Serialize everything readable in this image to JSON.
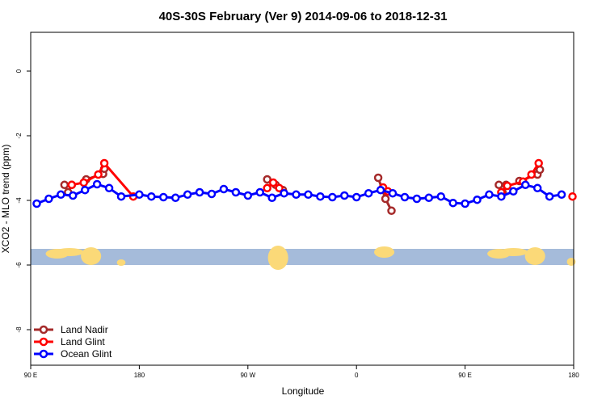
{
  "chart_data": {
    "type": "line",
    "title": "40S-30S February (Ver 9)   2014-09-06 to 2018-12-31",
    "xlabel": "Longitude",
    "ylabel": "XCO2 - MLO trend (ppm)",
    "x_ticks": [
      {
        "value": 90,
        "label": "90 E"
      },
      {
        "value": 180,
        "label": "180"
      },
      {
        "value": 270,
        "label": "90 W"
      },
      {
        "value": 360,
        "label": "0"
      },
      {
        "value": 450,
        "label": "90 E"
      },
      {
        "value": 540,
        "label": "180"
      }
    ],
    "y_ticks": [
      {
        "value": 0,
        "label": "0"
      },
      {
        "value": -2,
        "label": "-2"
      },
      {
        "value": -4,
        "label": "-4"
      },
      {
        "value": -6,
        "label": "-6"
      },
      {
        "value": -8,
        "label": "-8"
      }
    ],
    "xlim": [
      90,
      540
    ],
    "ylim": [
      -9.1,
      1.2
    ],
    "grid": false,
    "legend_position": "bottom-left",
    "map_strip": {
      "y_range": [
        -5.5,
        -6.0
      ],
      "ocean_color": "#a5bbda",
      "land_color": "#fbd978"
    },
    "series": [
      {
        "name": "Land Nadir",
        "color": "#a52a2a",
        "segments": [
          [
            [
              118,
              -3.52
            ],
            [
              121,
              -3.75
            ],
            [
              124,
              -3.52
            ]
          ],
          [
            [
              136,
              -3.35
            ],
            [
              150,
              -3.18
            ],
            [
              151,
              -3.02
            ]
          ],
          [
            [
              286,
              -3.35
            ],
            [
              293,
              -3.52
            ],
            [
              299,
              -3.68
            ]
          ],
          [
            [
              378,
              -3.3
            ],
            [
              384,
              -3.95
            ],
            [
              389,
              -4.32
            ]
          ],
          [
            [
              478,
              -3.52
            ],
            [
              481,
              -3.75
            ],
            [
              484,
              -3.52
            ]
          ],
          [
            [
              495,
              -3.4
            ],
            [
              510,
              -3.2
            ],
            [
              512,
              -3.05
            ]
          ]
        ]
      },
      {
        "name": "Land Glint",
        "color": "#ff0000",
        "segments": [
          [
            [
              124,
              -3.52
            ],
            [
              134,
              -3.45
            ],
            [
              146,
              -3.2
            ],
            [
              151,
              -2.85
            ],
            [
              175,
              -3.88
            ]
          ],
          [
            [
              286,
              -3.62
            ],
            [
              291,
              -3.45
            ],
            [
              296,
              -3.62
            ]
          ],
          [
            [
              382,
              -3.6
            ],
            [
              386,
              -3.72
            ]
          ],
          [
            [
              480,
              -3.75
            ],
            [
              485,
              -3.55
            ],
            [
              498,
              -3.42
            ],
            [
              505,
              -3.2
            ],
            [
              511,
              -2.85
            ]
          ],
          [
            [
              539,
              -3.88
            ]
          ]
        ]
      },
      {
        "name": "Ocean Glint",
        "color": "#0000ff",
        "points": [
          [
            95,
            -4.1
          ],
          [
            105,
            -3.95
          ],
          [
            115,
            -3.82
          ],
          [
            125,
            -3.85
          ],
          [
            135,
            -3.68
          ],
          [
            145,
            -3.5
          ],
          [
            155,
            -3.62
          ],
          [
            165,
            -3.88
          ],
          [
            180,
            -3.82
          ],
          [
            190,
            -3.88
          ],
          [
            200,
            -3.9
          ],
          [
            210,
            -3.92
          ],
          [
            220,
            -3.82
          ],
          [
            230,
            -3.75
          ],
          [
            240,
            -3.8
          ],
          [
            250,
            -3.65
          ],
          [
            260,
            -3.75
          ],
          [
            270,
            -3.85
          ],
          [
            280,
            -3.75
          ],
          [
            290,
            -3.92
          ],
          [
            300,
            -3.78
          ],
          [
            310,
            -3.82
          ],
          [
            320,
            -3.82
          ],
          [
            330,
            -3.88
          ],
          [
            340,
            -3.9
          ],
          [
            350,
            -3.85
          ],
          [
            360,
            -3.9
          ],
          [
            370,
            -3.78
          ],
          [
            380,
            -3.68
          ],
          [
            390,
            -3.78
          ],
          [
            400,
            -3.9
          ],
          [
            410,
            -3.95
          ],
          [
            420,
            -3.92
          ],
          [
            430,
            -3.88
          ],
          [
            440,
            -4.08
          ],
          [
            450,
            -4.1
          ],
          [
            460,
            -3.98
          ],
          [
            470,
            -3.82
          ],
          [
            480,
            -3.88
          ],
          [
            490,
            -3.72
          ],
          [
            500,
            -3.52
          ],
          [
            510,
            -3.62
          ],
          [
            520,
            -3.88
          ],
          [
            530,
            -3.82
          ]
        ]
      }
    ]
  }
}
